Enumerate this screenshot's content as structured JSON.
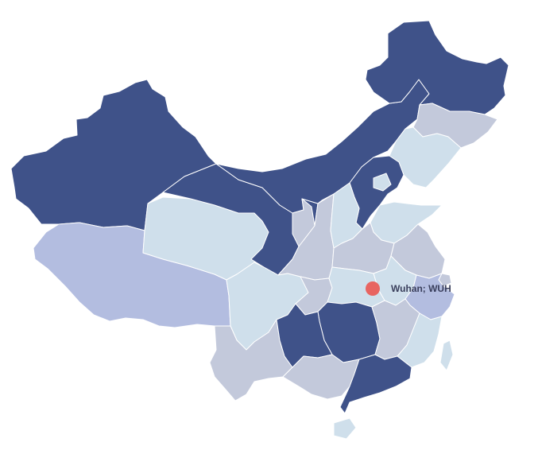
{
  "palette": {
    "dark": "#3f5289",
    "light": "#cfdfeb",
    "gray": "#c3c9db",
    "periwinkle": "#b3bde0",
    "marker": "#e86461",
    "label": "#3a3f5c"
  },
  "marker": {
    "label": "Wuhan; WUH",
    "icon": "location-dot-icon"
  },
  "regions": [
    {
      "name": "xinjiang",
      "shade": "dark"
    },
    {
      "name": "tibet",
      "shade": "periwinkle"
    },
    {
      "name": "qinghai",
      "shade": "light"
    },
    {
      "name": "gansu",
      "shade": "dark"
    },
    {
      "name": "inner-mongolia",
      "shade": "dark"
    },
    {
      "name": "heilongjiang",
      "shade": "dark"
    },
    {
      "name": "jilin",
      "shade": "gray"
    },
    {
      "name": "liaoning",
      "shade": "light"
    },
    {
      "name": "hebei",
      "shade": "dark"
    },
    {
      "name": "beijing",
      "shade": "light"
    },
    {
      "name": "shandong",
      "shade": "light"
    },
    {
      "name": "ningxia",
      "shade": "gray"
    },
    {
      "name": "shaanxi",
      "shade": "gray"
    },
    {
      "name": "shanxi",
      "shade": "light"
    },
    {
      "name": "henan",
      "shade": "gray"
    },
    {
      "name": "jiangsu",
      "shade": "gray"
    },
    {
      "name": "anhui",
      "shade": "light"
    },
    {
      "name": "shanghai",
      "shade": "gray"
    },
    {
      "name": "zhejiang",
      "shade": "periwinkle"
    },
    {
      "name": "sichuan",
      "shade": "light"
    },
    {
      "name": "chongqing",
      "shade": "gray"
    },
    {
      "name": "hubei",
      "shade": "light"
    },
    {
      "name": "hunan",
      "shade": "dark"
    },
    {
      "name": "jiangxi",
      "shade": "gray"
    },
    {
      "name": "fujian",
      "shade": "light"
    },
    {
      "name": "taiwan",
      "shade": "light"
    },
    {
      "name": "yunnan",
      "shade": "gray"
    },
    {
      "name": "guizhou",
      "shade": "dark"
    },
    {
      "name": "guangxi",
      "shade": "gray"
    },
    {
      "name": "guangdong",
      "shade": "dark"
    },
    {
      "name": "hainan",
      "shade": "light"
    }
  ]
}
